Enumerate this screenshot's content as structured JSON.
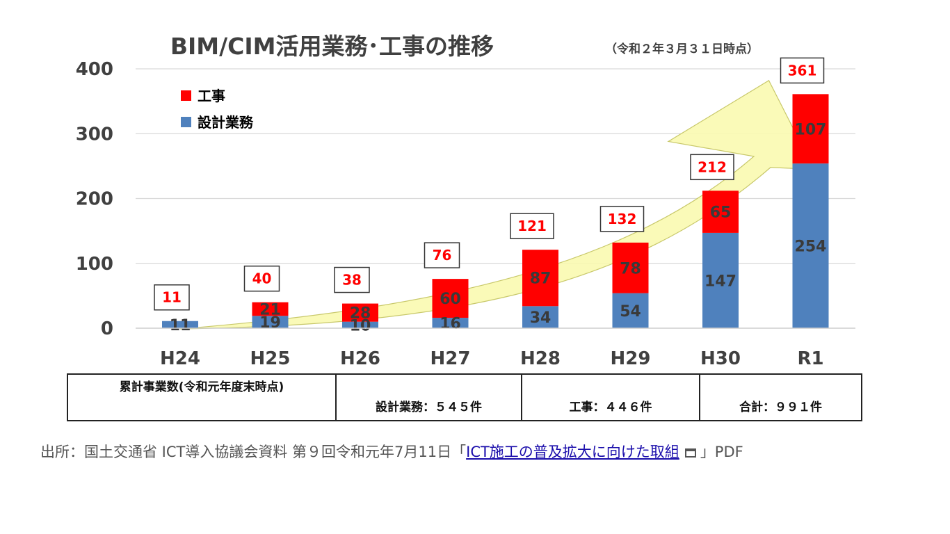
{
  "chart_data": {
    "type": "bar",
    "stacked": true,
    "title": "BIM/CIM活用業務･工事の推移",
    "subtitle": "（令和２年３月３１日時点）",
    "categories": [
      "H24",
      "H25",
      "H26",
      "H27",
      "H28",
      "H29",
      "H30",
      "R1"
    ],
    "series": [
      {
        "name": "設計業務",
        "color": "#4f81bd",
        "values": [
          11,
          19,
          10,
          16,
          34,
          54,
          147,
          254
        ]
      },
      {
        "name": "工事",
        "color": "#ff0000",
        "values": [
          0,
          21,
          28,
          60,
          87,
          78,
          65,
          107
        ]
      }
    ],
    "totals": [
      11,
      40,
      38,
      76,
      121,
      132,
      212,
      361
    ],
    "ylim": [
      0,
      400
    ],
    "yticks": [
      "0",
      "100",
      "200",
      "300",
      "400"
    ],
    "grid": true,
    "legend_position": "top-left",
    "trend_arrow": true
  },
  "summary": {
    "header": "累計事業数(令和元年度末時点)",
    "design": "設計業務：５４５件",
    "construction": "工事：４４６件",
    "total": "合計：９９１件"
  },
  "source": {
    "prefix": "出所：国土交通省 ICT導入協議会資料 第９回令和元年7月11日「",
    "link_text": "ICT施工の普及拡大に向けた取組",
    "suffix": "」PDF"
  },
  "colors": {
    "design": "#4f81bd",
    "construction": "#ff0000",
    "arrow": "#fafab0"
  }
}
